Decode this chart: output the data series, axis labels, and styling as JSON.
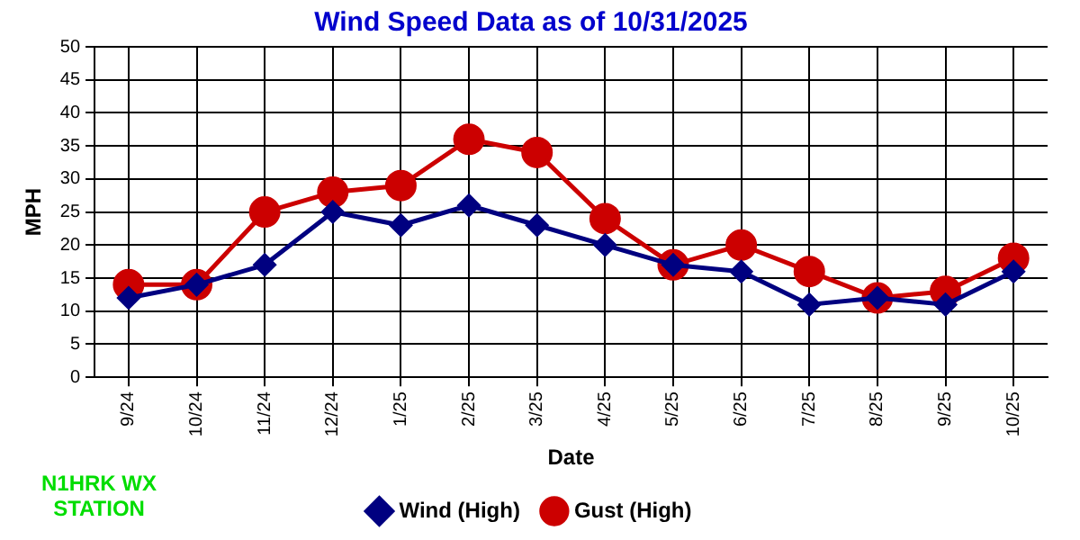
{
  "chart_data": {
    "type": "line",
    "title": "Wind Speed Data as of 10/31/2025",
    "xlabel": "Date",
    "ylabel": "MPH",
    "categories": [
      "9/24",
      "10/24",
      "11/24",
      "12/24",
      "1/25",
      "2/25",
      "3/25",
      "4/25",
      "5/25",
      "6/25",
      "7/25",
      "8/25",
      "9/25",
      "10/25"
    ],
    "series": [
      {
        "name": "Wind (High)",
        "color": "#000080",
        "marker": "diamond",
        "values": [
          12,
          14,
          17,
          25,
          23,
          26,
          23,
          20,
          17,
          16,
          11,
          12,
          11,
          16
        ]
      },
      {
        "name": "Gust (High)",
        "color": "#cc0000",
        "marker": "circle",
        "values": [
          14,
          14,
          25,
          28,
          29,
          36,
          34,
          24,
          17,
          20,
          16,
          12,
          13,
          18
        ]
      }
    ],
    "ylim": [
      0,
      50
    ],
    "yticks": [
      0,
      5,
      10,
      15,
      20,
      25,
      30,
      35,
      40,
      45,
      50
    ],
    "grid": true,
    "legend": "bottom",
    "annotations": [
      "N1HRK WX STATION"
    ]
  }
}
